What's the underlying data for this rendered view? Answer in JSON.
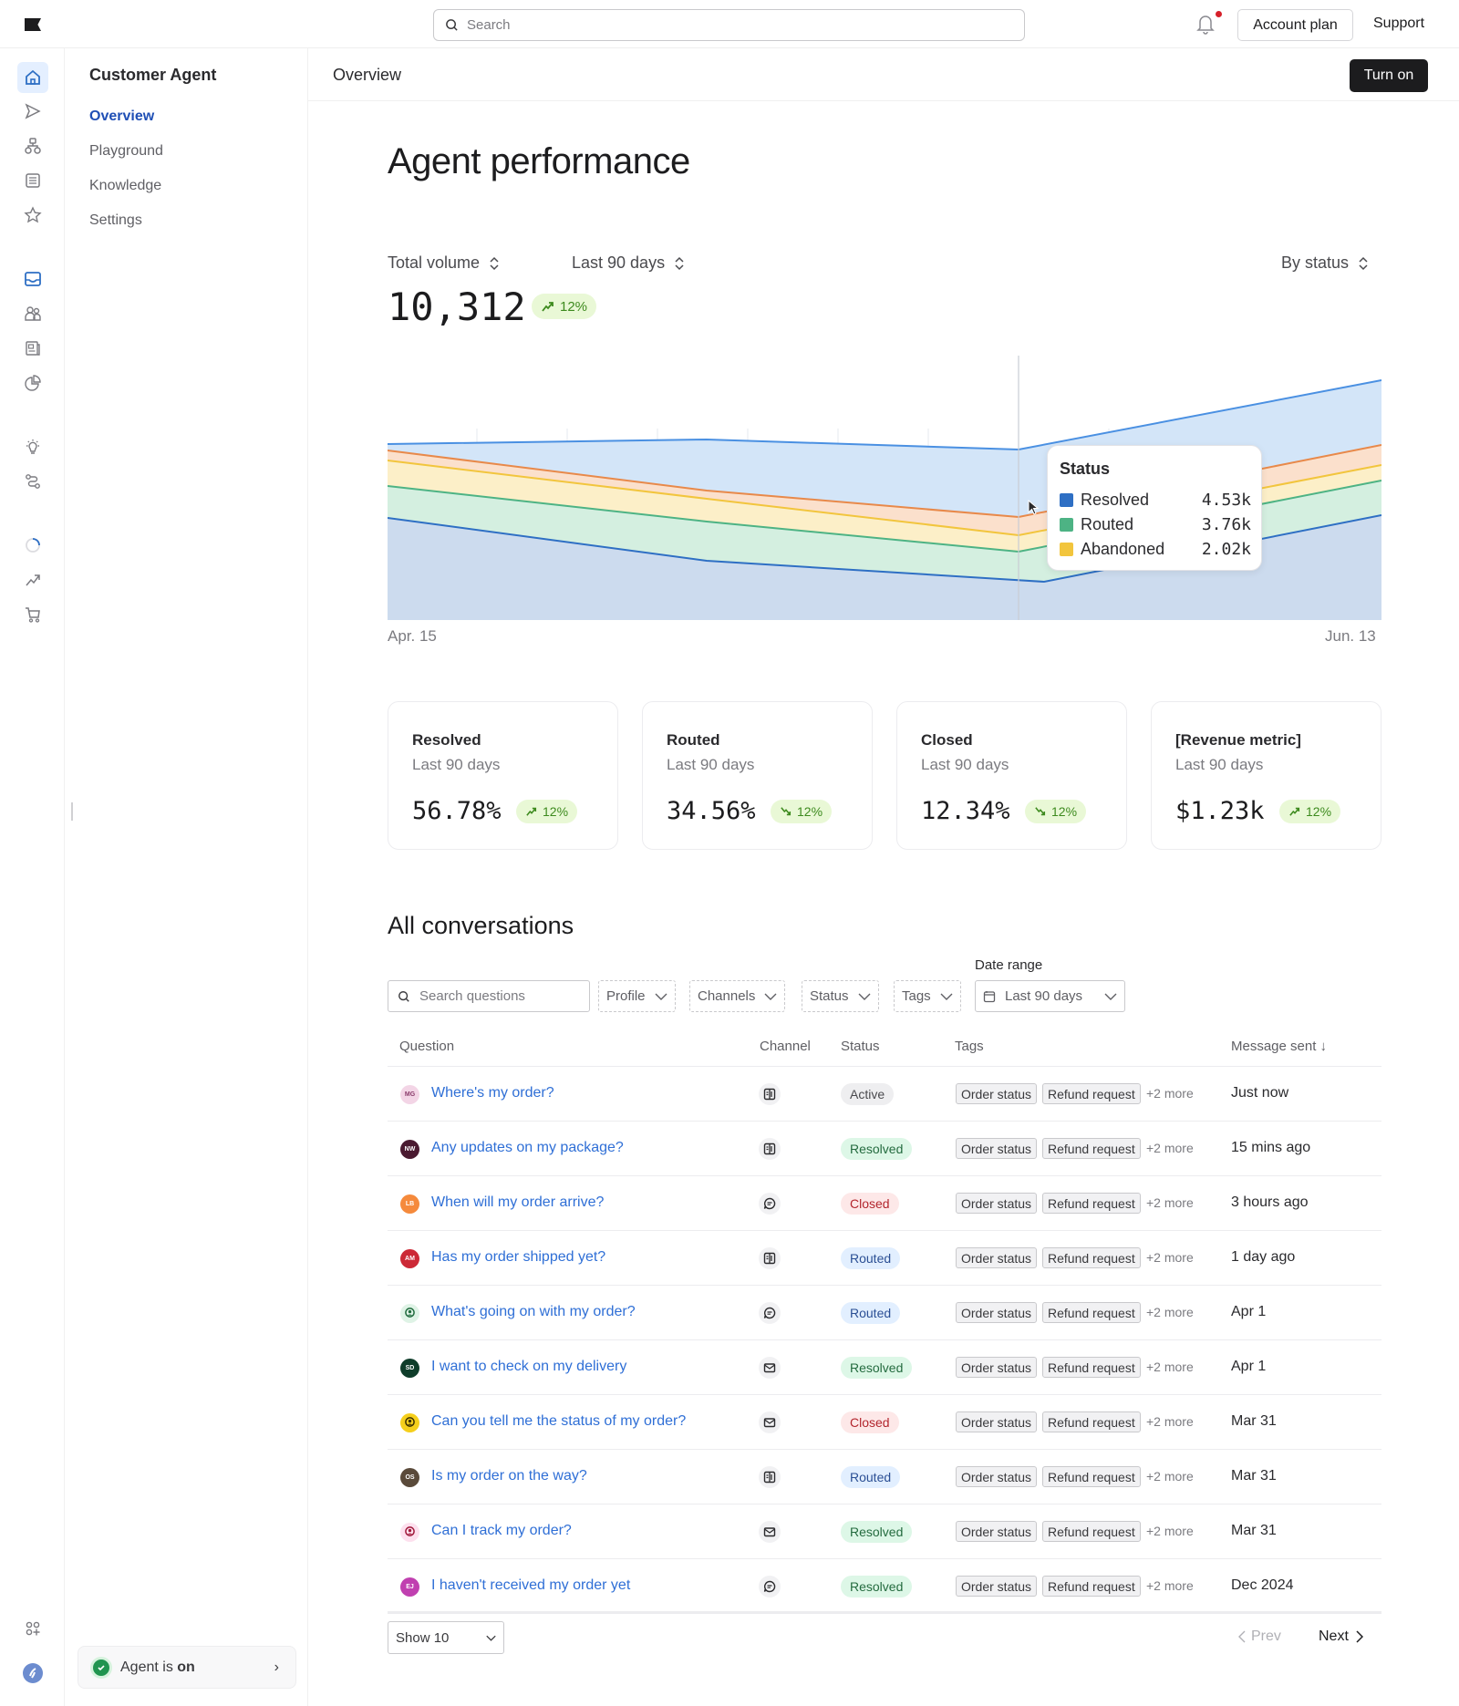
{
  "topbar": {
    "search_placeholder": "Search",
    "account_plan": "Account plan",
    "support": "Support"
  },
  "subnav": {
    "title": "Customer Agent",
    "items": [
      {
        "label": "Overview",
        "active": true
      },
      {
        "label": "Playground"
      },
      {
        "label": "Knowledge"
      },
      {
        "label": "Settings"
      }
    ],
    "agent_status_prefix": "Agent is ",
    "agent_status_value": "on"
  },
  "page_header": {
    "title": "Overview",
    "turn_on": "Turn on"
  },
  "performance": {
    "title": "Agent performance",
    "metric_selector": "Total volume",
    "range_selector": "Last 90 days",
    "group_selector": "By status",
    "total": "10,312",
    "total_trend": "12%",
    "x_start": "Apr. 15",
    "x_end": "Jun. 13",
    "tooltip": {
      "title": "Status",
      "rows": [
        {
          "label": "Resolved",
          "value": "4.53k",
          "color": "#2e6fc4"
        },
        {
          "label": "Routed",
          "value": "3.76k",
          "color": "#4db384"
        },
        {
          "label": "Abandoned",
          "value": "2.02k",
          "color": "#f2c53d"
        }
      ]
    }
  },
  "chart_data": {
    "type": "area",
    "title": "Agent performance — Total volume by status",
    "x": [
      "Apr. 15",
      "",
      "",
      "",
      "",
      "",
      "",
      "",
      "Jun. 13"
    ],
    "series": [
      {
        "name": "Total",
        "color": "#4a90e2",
        "values": [
          8.1,
          8.2,
          8.3,
          8.2,
          8.1,
          8.0,
          9.2,
          10.0,
          10.5
        ]
      },
      {
        "name": "Abandoned (top)",
        "color": "#e8894a",
        "values": [
          7.4,
          7.0,
          6.6,
          6.2,
          5.8,
          5.5,
          5.3,
          6.0,
          6.5
        ]
      },
      {
        "name": "Abandoned",
        "color": "#f2c53d",
        "values": [
          7.0,
          6.6,
          6.2,
          5.8,
          5.3,
          4.9,
          4.9,
          5.6,
          6.1
        ]
      },
      {
        "name": "Routed",
        "color": "#4db384",
        "values": [
          6.0,
          5.7,
          5.4,
          5.1,
          4.7,
          4.4,
          4.6,
          5.3,
          5.8
        ]
      },
      {
        "name": "Resolved",
        "color": "#2e6fc4",
        "values": [
          4.6,
          4.2,
          3.9,
          3.6,
          3.3,
          3.0,
          3.2,
          3.7,
          4.2
        ]
      }
    ],
    "hover": {
      "Resolved": "4.53k",
      "Routed": "3.76k",
      "Abandoned": "2.02k"
    },
    "xlabel": "",
    "ylabel": "",
    "grid": true,
    "legend": "tooltip"
  },
  "cards": [
    {
      "title": "Resolved",
      "sub": "Last 90 days",
      "value": "56.78%",
      "trend": "12%",
      "dir": "up"
    },
    {
      "title": "Routed",
      "sub": "Last 90 days",
      "value": "34.56%",
      "trend": "12%",
      "dir": "down"
    },
    {
      "title": "Closed",
      "sub": "Last 90 days",
      "value": "12.34%",
      "trend": "12%",
      "dir": "down"
    },
    {
      "title": "[Revenue metric]",
      "sub": "Last 90 days",
      "value": "$1.23k",
      "trend": "12%",
      "dir": "up"
    }
  ],
  "conversations": {
    "title": "All conversations",
    "search_placeholder": "Search questions",
    "filters": [
      "Profile",
      "Channels",
      "Status",
      "Tags"
    ],
    "date_range_label": "Date range",
    "date_range_value": "Last 90 days",
    "columns": [
      "Question",
      "Channel",
      "Status",
      "Tags",
      "Message sent ↓"
    ],
    "rows": [
      {
        "initials": "MG",
        "avatar_bg": "#f3d5e6",
        "avatar_fg": "#8a3c6b",
        "question": "Where's my order?",
        "channel": "book",
        "status": "Active",
        "status_class": "st-active",
        "tags": [
          "Order status",
          "Refund request"
        ],
        "more": "+2 more",
        "sent": "Just now"
      },
      {
        "initials": "NW",
        "avatar_bg": "#4a1a30",
        "avatar_fg": "#ffffff",
        "question": "Any updates on my package?",
        "channel": "book",
        "status": "Resolved",
        "status_class": "st-resolved",
        "tags": [
          "Order status",
          "Refund request"
        ],
        "more": "+2 more",
        "sent": "15 mins ago"
      },
      {
        "initials": "LB",
        "avatar_bg": "#f58a3c",
        "avatar_fg": "#ffffff",
        "question": "When will my order arrive?",
        "channel": "chat",
        "status": "Closed",
        "status_class": "st-closed",
        "tags": [
          "Order status",
          "Refund request"
        ],
        "more": "+2 more",
        "sent": "3 hours ago"
      },
      {
        "initials": "AM",
        "avatar_bg": "#cc2936",
        "avatar_fg": "#ffffff",
        "question": "Has my order shipped yet?",
        "channel": "book",
        "status": "Routed",
        "status_class": "st-routed",
        "tags": [
          "Order status",
          "Refund request"
        ],
        "more": "+2 more",
        "sent": "1 day ago"
      },
      {
        "initials": "",
        "avatar_bg": "#dff3e6",
        "avatar_fg": "#1f6b3d",
        "question": "What's going on with my order?",
        "channel": "chat",
        "status": "Routed",
        "status_class": "st-routed",
        "tags": [
          "Order status",
          "Refund request"
        ],
        "more": "+2 more",
        "sent": "Apr 1"
      },
      {
        "initials": "SD",
        "avatar_bg": "#0f3d2a",
        "avatar_fg": "#ffffff",
        "question": "I want to check on my delivery",
        "channel": "mail",
        "status": "Resolved",
        "status_class": "st-resolved",
        "tags": [
          "Order status",
          "Refund request"
        ],
        "more": "+2 more",
        "sent": "Apr 1"
      },
      {
        "initials": "",
        "avatar_bg": "#f5cf1c",
        "avatar_fg": "#3a2f00",
        "question": "Can you tell me the status of my order?",
        "channel": "mail",
        "status": "Closed",
        "status_class": "st-closed",
        "tags": [
          "Order status",
          "Refund request"
        ],
        "more": "+2 more",
        "sent": "Mar 31"
      },
      {
        "initials": "OS",
        "avatar_bg": "#5a4a3a",
        "avatar_fg": "#ffffff",
        "question": "Is my order on the way?",
        "channel": "book",
        "status": "Routed",
        "status_class": "st-routed",
        "tags": [
          "Order status",
          "Refund request"
        ],
        "more": "+2 more",
        "sent": "Mar 31"
      },
      {
        "initials": "",
        "avatar_bg": "#fde0ee",
        "avatar_fg": "#a0183a",
        "question": "Can I track my order?",
        "channel": "mail",
        "status": "Resolved",
        "status_class": "st-resolved",
        "tags": [
          "Order status",
          "Refund request"
        ],
        "more": "+2 more",
        "sent": "Mar 31"
      },
      {
        "initials": "EJ",
        "avatar_bg": "#c040b0",
        "avatar_fg": "#ffffff",
        "question": "I haven't received my order yet",
        "channel": "chat",
        "status": "Resolved",
        "status_class": "st-resolved",
        "tags": [
          "Order status",
          "Refund request"
        ],
        "more": "+2 more",
        "sent": "Dec 2024"
      }
    ],
    "show_label": "Show 10",
    "prev": "Prev",
    "next": "Next"
  },
  "colors": {
    "accent": "#1f4fb5",
    "link": "#2f6fd6",
    "trend_bg": "#e9f8d6",
    "trend_fg": "#3d8a1e"
  }
}
